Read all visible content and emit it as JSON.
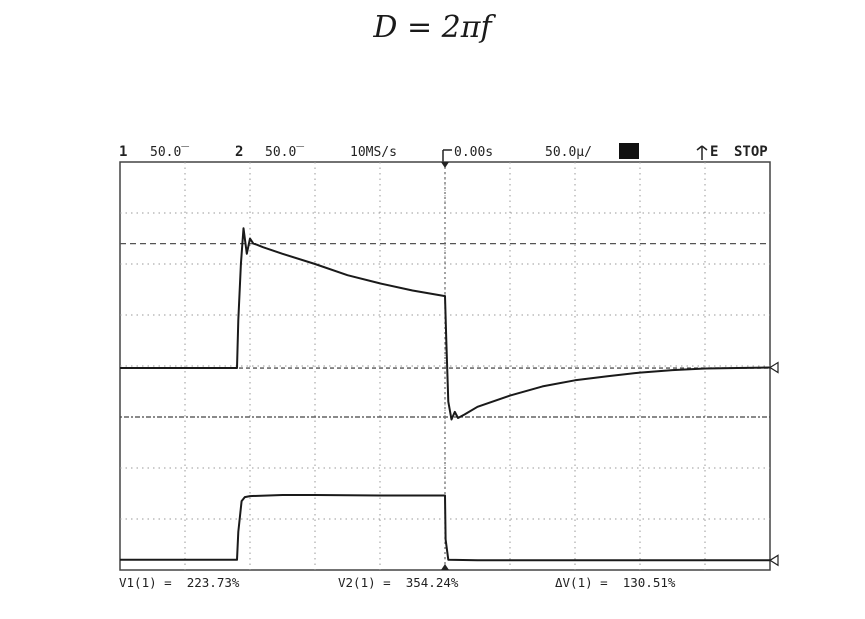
{
  "equation": "D = 2πf",
  "scope_header": {
    "ch1_num": "1",
    "ch1_scale": "50.0̅",
    "ch2_num": "2",
    "ch2_scale": "50.0̅",
    "timebase": "10MS/s",
    "trigger_pos": "0.00s",
    "time_div": "50.0μ/",
    "trigger_mode": "E",
    "run_state": "STOP"
  },
  "cursor_readout": {
    "v1": "V1(1) =  223.73%",
    "v2": "V2(1) =  354.24%",
    "dv": "ΔV(1) =  130.51%"
  },
  "chart_data": {
    "type": "line",
    "title": "",
    "xlabel": "",
    "ylabel": "",
    "xlim": [
      0,
      10
    ],
    "ylim": [
      0,
      8
    ],
    "grid": true,
    "series": [
      {
        "x": [
          0,
          1.8,
          1.82,
          1.86,
          1.9,
          1.95,
          2.0,
          2.05,
          2.1,
          2.2,
          2.5,
          3.0,
          3.5,
          4.0,
          4.5,
          5.0,
          5.02,
          5.05,
          5.1,
          5.15,
          5.2,
          5.3,
          5.5,
          6.0,
          6.5,
          7.0,
          7.5,
          8.0,
          8.5,
          9.0,
          9.5,
          10
        ],
        "y": [
          3.96,
          3.96,
          4.9,
          6.0,
          6.7,
          6.2,
          6.5,
          6.4,
          6.38,
          6.33,
          6.2,
          6.0,
          5.78,
          5.62,
          5.48,
          5.37,
          4.5,
          3.3,
          2.95,
          3.1,
          2.98,
          3.05,
          3.2,
          3.42,
          3.6,
          3.72,
          3.8,
          3.87,
          3.92,
          3.95,
          3.96,
          3.97
        ]
      },
      {
        "x": [
          0,
          1.8,
          1.82,
          1.87,
          1.92,
          2.0,
          2.5,
          3.0,
          4.0,
          5.0,
          5.01,
          5.05,
          5.5,
          6.0,
          7.0,
          8.0,
          9.0,
          10
        ],
        "y": [
          0.2,
          0.2,
          0.75,
          1.35,
          1.43,
          1.45,
          1.47,
          1.47,
          1.46,
          1.46,
          0.6,
          0.2,
          0.19,
          0.19,
          0.19,
          0.19,
          0.19,
          0.19
        ]
      }
    ],
    "reference_levels": {
      "dashed_top": 6.4,
      "dashed_mid": 3.96,
      "dotted_center": 3.0
    },
    "trigger_time": 5.0
  }
}
